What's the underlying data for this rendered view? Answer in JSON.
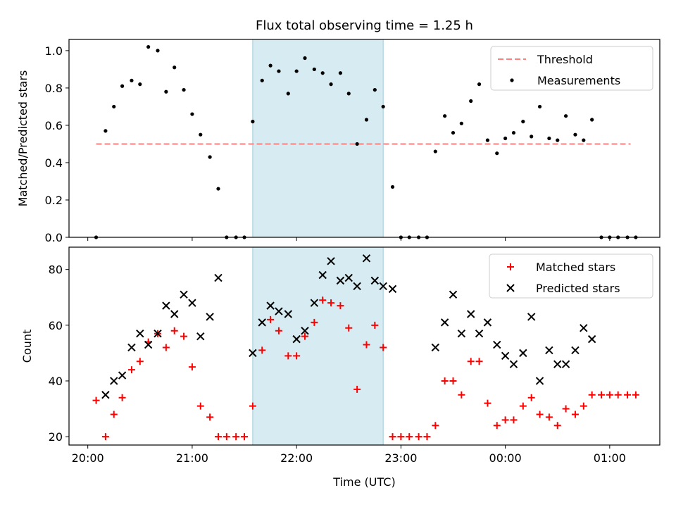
{
  "chart_data": [
    {
      "type": "scatter",
      "title": "Flux total observing time = 1.25 h",
      "xlabel": "",
      "ylabel": "Matched/Predicted stars",
      "ylim": [
        0,
        1.06
      ],
      "yticks": [
        "0.0",
        "0.2",
        "0.4",
        "0.6",
        "0.8",
        "1.0"
      ],
      "highlight_span": {
        "start": 21.58,
        "end": 22.83,
        "color": "#add8e6"
      },
      "threshold": {
        "name": "Threshold",
        "y": 0.5,
        "x": [
          20.08,
          25.2
        ],
        "color": "#ff7f7f"
      },
      "legend": [
        "Threshold",
        "Measurements"
      ],
      "legend_position": "upper right",
      "series": [
        {
          "name": "Measurements",
          "color": "#000000",
          "points": [
            [
              20.08,
              0.0
            ],
            [
              20.17,
              0.57
            ],
            [
              20.25,
              0.7
            ],
            [
              20.33,
              0.81
            ],
            [
              20.42,
              0.84
            ],
            [
              20.5,
              0.82
            ],
            [
              20.58,
              1.02
            ],
            [
              20.67,
              1.0
            ],
            [
              20.75,
              0.78
            ],
            [
              20.83,
              0.91
            ],
            [
              20.92,
              0.79
            ],
            [
              21.0,
              0.66
            ],
            [
              21.08,
              0.55
            ],
            [
              21.17,
              0.43
            ],
            [
              21.25,
              0.26
            ],
            [
              21.33,
              0.0
            ],
            [
              21.42,
              0.0
            ],
            [
              21.5,
              0.0
            ],
            [
              21.58,
              0.62
            ],
            [
              21.67,
              0.84
            ],
            [
              21.75,
              0.92
            ],
            [
              21.83,
              0.89
            ],
            [
              21.92,
              0.77
            ],
            [
              22.0,
              0.89
            ],
            [
              22.08,
              0.96
            ],
            [
              22.17,
              0.9
            ],
            [
              22.25,
              0.88
            ],
            [
              22.33,
              0.82
            ],
            [
              22.42,
              0.88
            ],
            [
              22.5,
              0.77
            ],
            [
              22.58,
              0.5
            ],
            [
              22.67,
              0.63
            ],
            [
              22.75,
              0.79
            ],
            [
              22.83,
              0.7
            ],
            [
              22.92,
              0.27
            ],
            [
              23.0,
              0.0
            ],
            [
              23.08,
              0.0
            ],
            [
              23.17,
              0.0
            ],
            [
              23.25,
              0.0
            ],
            [
              23.33,
              0.46
            ],
            [
              23.42,
              0.65
            ],
            [
              23.5,
              0.56
            ],
            [
              23.58,
              0.61
            ],
            [
              23.67,
              0.73
            ],
            [
              23.75,
              0.82
            ],
            [
              23.83,
              0.52
            ],
            [
              23.92,
              0.45
            ],
            [
              24.0,
              0.53
            ],
            [
              24.08,
              0.56
            ],
            [
              24.17,
              0.62
            ],
            [
              24.25,
              0.54
            ],
            [
              24.33,
              0.7
            ],
            [
              24.42,
              0.53
            ],
            [
              24.5,
              0.52
            ],
            [
              24.58,
              0.65
            ],
            [
              24.67,
              0.55
            ],
            [
              24.75,
              0.52
            ],
            [
              24.83,
              0.63
            ],
            [
              24.92,
              0.0
            ],
            [
              25.0,
              0.0
            ],
            [
              25.08,
              0.0
            ],
            [
              25.17,
              0.0
            ],
            [
              25.25,
              0.0
            ]
          ]
        }
      ]
    },
    {
      "type": "scatter",
      "title": "",
      "xlabel": "Time (UTC)",
      "ylabel": "Count",
      "ylim": [
        17,
        88
      ],
      "yticks": [
        "20",
        "40",
        "60",
        "80"
      ],
      "xticks": [
        "20:00",
        "21:00",
        "22:00",
        "23:00",
        "00:00",
        "01:00"
      ],
      "xlim": [
        19.82,
        25.48
      ],
      "highlight_span": {
        "start": 21.58,
        "end": 22.83,
        "color": "#add8e6"
      },
      "legend": [
        "Matched stars",
        "Predicted stars"
      ],
      "legend_position": "upper right",
      "series": [
        {
          "name": "Matched stars",
          "marker": "+",
          "color": "#ff0000",
          "points": [
            [
              20.08,
              33
            ],
            [
              20.17,
              20
            ],
            [
              20.25,
              28
            ],
            [
              20.33,
              34
            ],
            [
              20.42,
              44
            ],
            [
              20.5,
              47
            ],
            [
              20.58,
              54
            ],
            [
              20.67,
              57
            ],
            [
              20.75,
              52
            ],
            [
              20.83,
              58
            ],
            [
              20.92,
              56
            ],
            [
              21.0,
              45
            ],
            [
              21.08,
              31
            ],
            [
              21.17,
              27
            ],
            [
              21.25,
              20
            ],
            [
              21.33,
              20
            ],
            [
              21.42,
              20
            ],
            [
              21.5,
              20
            ],
            [
              21.58,
              31
            ],
            [
              21.67,
              51
            ],
            [
              21.75,
              62
            ],
            [
              21.83,
              58
            ],
            [
              21.92,
              49
            ],
            [
              22.0,
              49
            ],
            [
              22.08,
              56
            ],
            [
              22.17,
              61
            ],
            [
              22.25,
              69
            ],
            [
              22.33,
              68
            ],
            [
              22.42,
              67
            ],
            [
              22.5,
              59
            ],
            [
              22.58,
              37
            ],
            [
              22.67,
              53
            ],
            [
              22.75,
              60
            ],
            [
              22.83,
              52
            ],
            [
              22.92,
              20
            ],
            [
              23.0,
              20
            ],
            [
              23.08,
              20
            ],
            [
              23.17,
              20
            ],
            [
              23.25,
              20
            ],
            [
              23.33,
              24
            ],
            [
              23.42,
              40
            ],
            [
              23.5,
              40
            ],
            [
              23.58,
              35
            ],
            [
              23.67,
              47
            ],
            [
              23.75,
              47
            ],
            [
              23.83,
              32
            ],
            [
              23.92,
              24
            ],
            [
              24.0,
              26
            ],
            [
              24.08,
              26
            ],
            [
              24.17,
              31
            ],
            [
              24.25,
              34
            ],
            [
              24.33,
              28
            ],
            [
              24.42,
              27
            ],
            [
              24.5,
              24
            ],
            [
              24.58,
              30
            ],
            [
              24.67,
              28
            ],
            [
              24.75,
              31
            ],
            [
              24.83,
              35
            ],
            [
              24.92,
              35
            ],
            [
              25.0,
              35
            ],
            [
              25.08,
              35
            ],
            [
              25.17,
              35
            ],
            [
              25.25,
              35
            ]
          ]
        },
        {
          "name": "Predicted stars",
          "marker": "x",
          "color": "#000000",
          "points": [
            [
              20.17,
              35
            ],
            [
              20.25,
              40
            ],
            [
              20.33,
              42
            ],
            [
              20.42,
              52
            ],
            [
              20.5,
              57
            ],
            [
              20.58,
              53
            ],
            [
              20.67,
              57
            ],
            [
              20.75,
              67
            ],
            [
              20.83,
              64
            ],
            [
              20.92,
              71
            ],
            [
              21.0,
              68
            ],
            [
              21.08,
              56
            ],
            [
              21.17,
              63
            ],
            [
              21.25,
              77
            ],
            [
              21.58,
              50
            ],
            [
              21.67,
              61
            ],
            [
              21.75,
              67
            ],
            [
              21.83,
              65
            ],
            [
              21.92,
              64
            ],
            [
              22.0,
              55
            ],
            [
              22.08,
              58
            ],
            [
              22.17,
              68
            ],
            [
              22.25,
              78
            ],
            [
              22.33,
              83
            ],
            [
              22.42,
              76
            ],
            [
              22.5,
              77
            ],
            [
              22.58,
              74
            ],
            [
              22.67,
              84
            ],
            [
              22.75,
              76
            ],
            [
              22.83,
              74
            ],
            [
              22.92,
              73
            ],
            [
              23.33,
              52
            ],
            [
              23.42,
              61
            ],
            [
              23.5,
              71
            ],
            [
              23.58,
              57
            ],
            [
              23.67,
              64
            ],
            [
              23.75,
              57
            ],
            [
              23.83,
              61
            ],
            [
              23.92,
              53
            ],
            [
              24.0,
              49
            ],
            [
              24.08,
              46
            ],
            [
              24.17,
              50
            ],
            [
              24.25,
              63
            ],
            [
              24.33,
              40
            ],
            [
              24.42,
              51
            ],
            [
              24.5,
              46
            ],
            [
              24.58,
              46
            ],
            [
              24.67,
              51
            ],
            [
              24.75,
              59
            ],
            [
              24.83,
              55
            ]
          ]
        }
      ]
    }
  ]
}
